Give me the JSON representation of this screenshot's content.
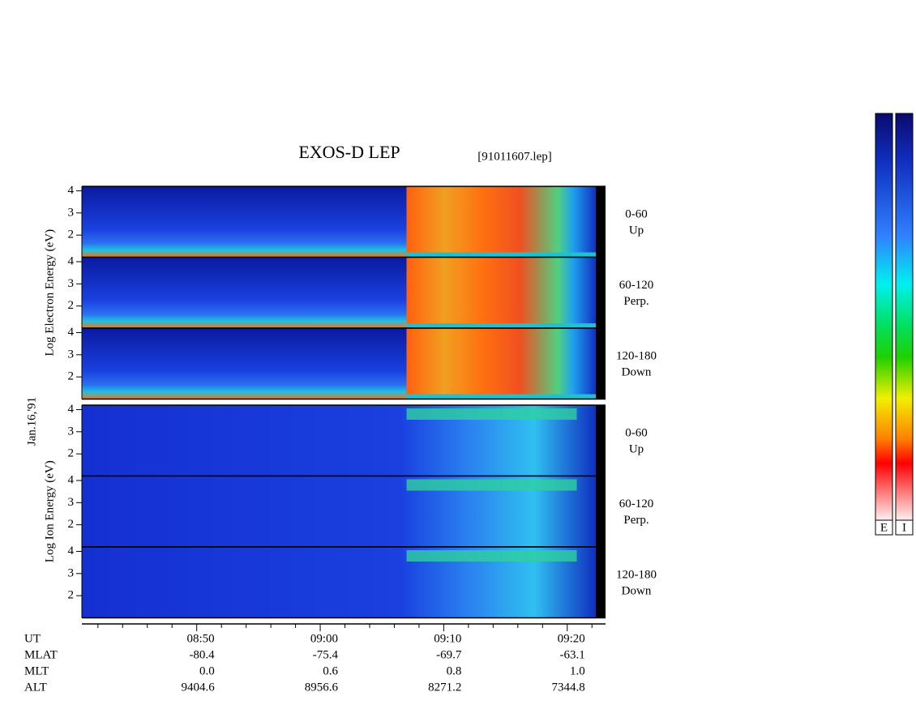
{
  "chart_data": {
    "type": "spectrogram",
    "title": "EXOS-D LEP",
    "subtitle": "[91011607.lep]",
    "date_label": "Jan.16,'91",
    "groups": [
      {
        "ylabel": "Log Electron Energy (eV)",
        "panels": [
          {
            "angle": "0-60",
            "direction": "Up"
          },
          {
            "angle": "60-120",
            "direction": "Perp."
          },
          {
            "angle": "120-180",
            "direction": "Down"
          }
        ]
      },
      {
        "ylabel": "Log Ion Energy (eV)",
        "panels": [
          {
            "angle": "0-60",
            "direction": "Up"
          },
          {
            "angle": "60-120",
            "direction": "Perp."
          },
          {
            "angle": "120-180",
            "direction": "Down"
          }
        ]
      }
    ],
    "ylim": [
      1,
      4.2
    ],
    "yticks": [
      2,
      3,
      4
    ],
    "xlim": [
      520.7,
      563.1
    ],
    "xticks": [
      {
        "value": 530,
        "label": "08:50"
      },
      {
        "value": 540,
        "label": "09:00"
      },
      {
        "value": 550,
        "label": "09:10"
      },
      {
        "value": 560,
        "label": "09:20"
      }
    ],
    "xminorticks": [
      522,
      524,
      526,
      528,
      532,
      534,
      536,
      538,
      542,
      544,
      546,
      548,
      552,
      554,
      556,
      558,
      562
    ],
    "x_row_name": "UT",
    "ephemeris": [
      {
        "name": "MLAT",
        "values": [
          -80.4,
          -75.4,
          -69.7,
          -63.1
        ]
      },
      {
        "name": "MLT",
        "values": [
          0,
          0.6,
          0.8,
          1
        ],
        "value_labels": [
          "0.0",
          "0.6",
          "0.8",
          "1.0"
        ]
      },
      {
        "name": "ALT",
        "values": [
          9404.6,
          8956.6,
          8271.2,
          7344.8
        ]
      }
    ],
    "colorbars": [
      "E",
      "I"
    ]
  }
}
